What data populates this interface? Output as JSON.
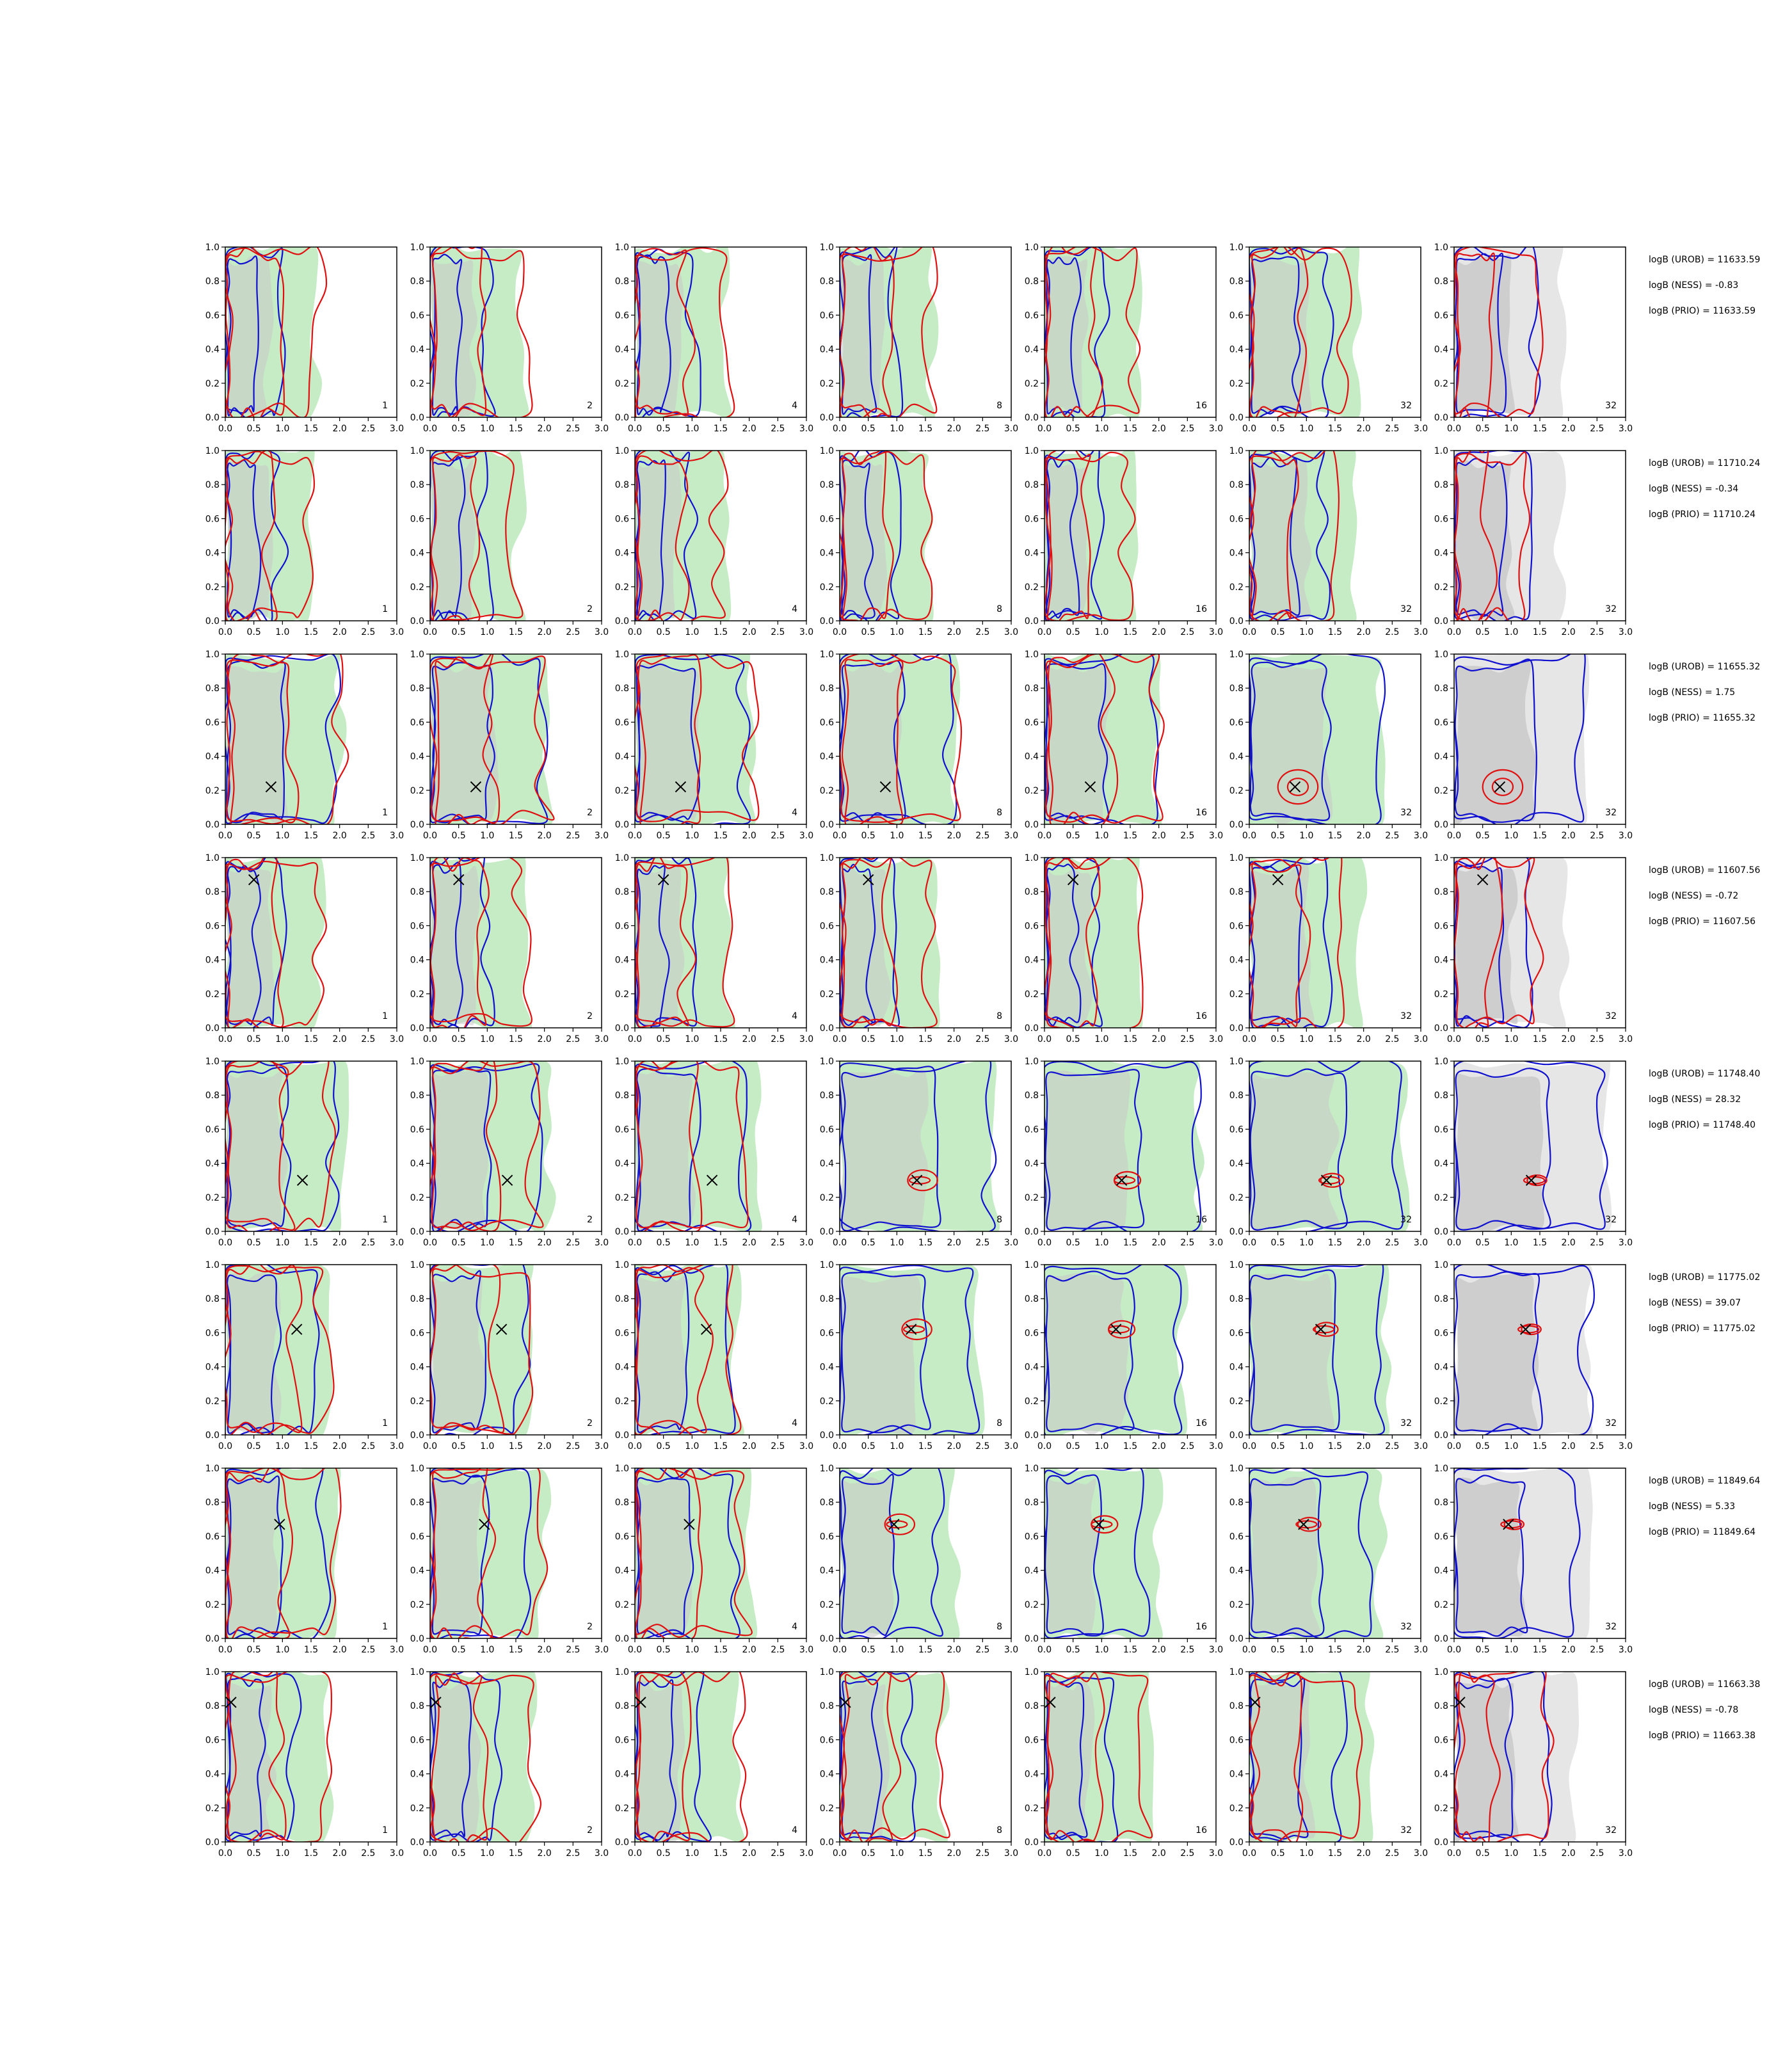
{
  "chart_data": {
    "type": "contour-grid",
    "grid": {
      "rows": 8,
      "cols": 7
    },
    "xlim": [
      0,
      3.0
    ],
    "ylim": [
      0,
      1.0
    ],
    "x_ticks": [
      "0.0",
      "0.5",
      "1.0",
      "1.5",
      "2.0",
      "2.5",
      "3.0"
    ],
    "y_ticks": [
      "0.0",
      "0.2",
      "0.4",
      "0.6",
      "0.8",
      "1.0"
    ],
    "column_labels": [
      "1",
      "2",
      "4",
      "8",
      "16",
      "32",
      "32"
    ],
    "colors": {
      "green_fill": "#c6ecc6",
      "gray_fill": "#c8c8c8",
      "light_gray_fill": "#e6e6e6",
      "blue_contour": "#1010d0",
      "red_contour": "#e01010",
      "marker": "#000000"
    },
    "rows": [
      {
        "marker": null,
        "stats": [
          "logB (UROB) = 11633.59",
          "logB (NESS) = -0.83",
          "logB (PRIO) = 11633.59"
        ]
      },
      {
        "marker": null,
        "stats": [
          "logB (UROB) = 11710.24",
          "logB (NESS) = -0.34",
          "logB (PRIO) = 11710.24"
        ]
      },
      {
        "marker": [
          0.8,
          0.22
        ],
        "stats": [
          "logB (UROB) = 11655.32",
          "logB (NESS) = 1.75",
          "logB (PRIO) = 11655.32"
        ]
      },
      {
        "marker": [
          0.5,
          0.87
        ],
        "stats": [
          "logB (UROB) = 11607.56",
          "logB (NESS) = -0.72",
          "logB (PRIO) = 11607.56"
        ]
      },
      {
        "marker": [
          1.35,
          0.3
        ],
        "stats": [
          "logB (UROB) = 11748.40",
          "logB (NESS) = 28.32",
          "logB (PRIO) = 11748.40"
        ]
      },
      {
        "marker": [
          1.25,
          0.62
        ],
        "stats": [
          "logB (UROB) = 11775.02",
          "logB (NESS) = 39.07",
          "logB (PRIO) = 11775.02"
        ]
      },
      {
        "marker": [
          0.95,
          0.67
        ],
        "stats": [
          "logB (UROB) = 11849.64",
          "logB (NESS) = 5.33",
          "logB (PRIO) = 11849.64"
        ]
      },
      {
        "marker": [
          0.1,
          0.82
        ],
        "stats": [
          "logB (UROB) = 11663.38",
          "logB (NESS) = -0.78",
          "logB (PRIO) = 11663.38"
        ]
      }
    ]
  }
}
